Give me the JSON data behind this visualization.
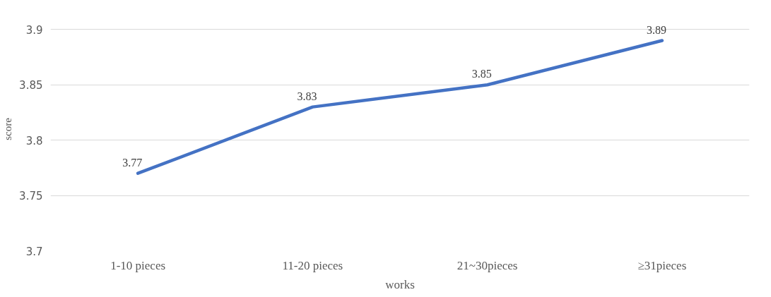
{
  "chart_data": {
    "type": "line",
    "xlabel": "works",
    "ylabel": "score",
    "categories": [
      "1-10 pieces",
      "11-20 pieces",
      "21~30pieces",
      "≥31pieces"
    ],
    "series": [
      {
        "color": "#4472c4",
        "values": [
          3.77,
          3.83,
          3.85,
          3.89
        ]
      }
    ],
    "ylim": [
      3.7,
      3.9
    ],
    "yticks": [
      3.7,
      3.75,
      3.8,
      3.85,
      3.9
    ],
    "grid": "y",
    "data_labels": true,
    "marker": "none",
    "line_style": "solid"
  }
}
